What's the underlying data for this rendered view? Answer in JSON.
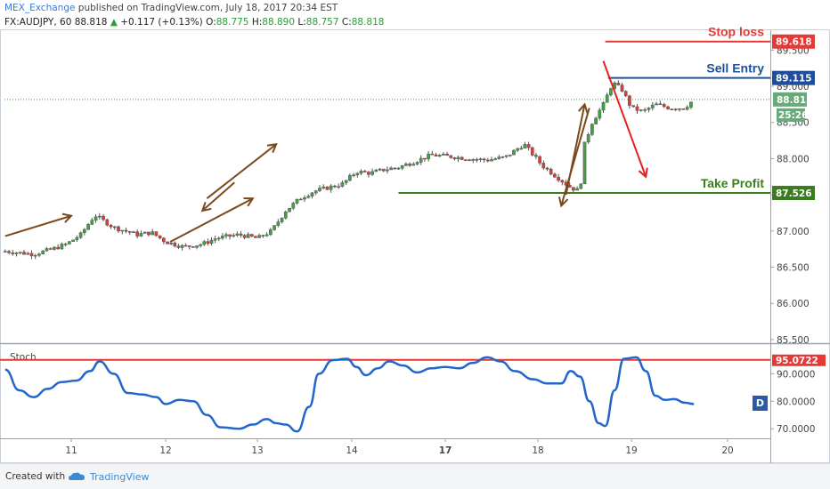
{
  "header": {
    "author": "MEX_Exchange",
    "published_text": " published on TradingView.com, July 18, 2017 20:34 EST",
    "symbol": "FX:AUDJPY, 60",
    "last": "88.818",
    "change": "+0.117 (+0.13%)",
    "open_label": "O:",
    "open": "88.775",
    "high_label": "H:",
    "high": "88.890",
    "low_label": "L:",
    "low": "88.757",
    "close_label": "C:",
    "close": "88.818"
  },
  "footer": {
    "created_with": "Created with",
    "brand": "TradingView"
  },
  "colors": {
    "up": "#43a047",
    "down": "#e53935",
    "wick": "#555555",
    "stop": "#e53935",
    "entry": "#1f4e9c",
    "tp": "#3a7d1e",
    "arrow_brown": "#7a4a1a",
    "arrow_red": "#e52020",
    "stoch": "#2266cc"
  },
  "chart_data": [
    {
      "type": "candlestick",
      "title": "FX:AUDJPY, 60",
      "x_ticks": [
        "11",
        "12",
        "13",
        "14",
        "17",
        "18",
        "19",
        "20"
      ],
      "x_range_days": [
        10.3,
        20.5
      ],
      "y_ticks": [
        "85.500",
        "86.000",
        "86.500",
        "87.000",
        "87.500",
        "88.000",
        "88.500",
        "89.000",
        "89.500"
      ],
      "ylim": [
        85.45,
        89.75
      ],
      "current_price": {
        "value": 88.818,
        "label": "88.818",
        "countdown": "25:26"
      },
      "levels": [
        {
          "name": "Stop loss",
          "value": 89.618,
          "label": "89.618"
        },
        {
          "name": "Sell Entry",
          "value": 89.115,
          "label": "89.115"
        },
        {
          "name": "Take Profit",
          "value": 87.526,
          "label": "87.526"
        }
      ],
      "close_path": [
        [
          10.3,
          86.72
        ],
        [
          10.6,
          86.68
        ],
        [
          10.8,
          86.75
        ],
        [
          10.95,
          86.82
        ],
        [
          11.1,
          86.95
        ],
        [
          11.25,
          87.22
        ],
        [
          11.45,
          87.05
        ],
        [
          11.7,
          86.95
        ],
        [
          11.85,
          86.98
        ],
        [
          12.0,
          86.85
        ],
        [
          12.2,
          86.78
        ],
        [
          12.4,
          86.82
        ],
        [
          12.55,
          86.9
        ],
        [
          12.8,
          86.95
        ],
        [
          13.0,
          86.9
        ],
        [
          13.15,
          87.0
        ],
        [
          13.3,
          87.28
        ],
        [
          13.45,
          87.45
        ],
        [
          13.6,
          87.55
        ],
        [
          13.75,
          87.6
        ],
        [
          13.9,
          87.65
        ],
        [
          14.05,
          87.82
        ],
        [
          14.2,
          87.8
        ],
        [
          14.35,
          87.85
        ],
        [
          14.5,
          87.88
        ],
        [
          14.65,
          87.95
        ],
        [
          14.85,
          88.05
        ],
        [
          15.05,
          88.03
        ],
        [
          15.25,
          88.0
        ],
        [
          15.45,
          87.98
        ],
        [
          15.65,
          88.02
        ],
        [
          15.85,
          88.2
        ],
        [
          16.05,
          87.9
        ],
        [
          16.2,
          87.75
        ],
        [
          16.35,
          87.6
        ],
        [
          16.45,
          87.55
        ],
        [
          16.5,
          88.2
        ],
        [
          16.58,
          88.5
        ],
        [
          16.7,
          88.75
        ],
        [
          16.8,
          89.05
        ],
        [
          16.9,
          88.95
        ],
        [
          17.0,
          88.7
        ],
        [
          17.12,
          88.65
        ],
        [
          17.25,
          88.75
        ],
        [
          17.4,
          88.7
        ],
        [
          17.55,
          88.7
        ],
        [
          17.65,
          88.818
        ]
      ],
      "annotations": [
        {
          "text": "Stop loss",
          "color": "#e53935"
        },
        {
          "text": "Sell Entry",
          "color": "#1f4e9c"
        },
        {
          "text": "Take Profit",
          "color": "#3a7d1e"
        }
      ]
    },
    {
      "type": "line",
      "title": "Stoch",
      "y_ticks": [
        "70.0000",
        "80.0000",
        "90.0000"
      ],
      "ylim": [
        66.5,
        100.5
      ],
      "overbought": {
        "value": 95.0722,
        "label": "95.0722"
      },
      "badge": "D",
      "series": [
        {
          "values": [
            [
              10.3,
              91.5
            ],
            [
              10.45,
              84
            ],
            [
              10.6,
              81.5
            ],
            [
              10.75,
              84.5
            ],
            [
              10.9,
              87
            ],
            [
              11.05,
              87.5
            ],
            [
              11.2,
              91
            ],
            [
              11.3,
              94.5
            ],
            [
              11.45,
              90
            ],
            [
              11.6,
              83
            ],
            [
              11.75,
              82.5
            ],
            [
              11.9,
              81.5
            ],
            [
              12.0,
              79
            ],
            [
              12.15,
              80.5
            ],
            [
              12.3,
              80
            ],
            [
              12.45,
              75
            ],
            [
              12.6,
              70.5
            ],
            [
              12.8,
              70
            ],
            [
              12.95,
              71.5
            ],
            [
              13.1,
              73.5
            ],
            [
              13.2,
              72
            ],
            [
              13.3,
              71.5
            ],
            [
              13.42,
              69
            ],
            [
              13.55,
              78
            ],
            [
              13.65,
              90
            ],
            [
              13.8,
              95
            ],
            [
              13.95,
              95.5
            ],
            [
              14.05,
              92.5
            ],
            [
              14.15,
              89.5
            ],
            [
              14.28,
              92
            ],
            [
              14.4,
              94.5
            ],
            [
              14.55,
              93
            ],
            [
              14.7,
              90.5
            ],
            [
              14.85,
              92
            ],
            [
              15.0,
              92.5
            ],
            [
              15.15,
              92
            ],
            [
              15.3,
              94
            ],
            [
              15.45,
              96
            ],
            [
              15.6,
              94.5
            ],
            [
              15.75,
              91
            ],
            [
              15.95,
              88
            ],
            [
              16.1,
              86.5
            ],
            [
              16.25,
              86.5
            ],
            [
              16.35,
              91
            ],
            [
              16.45,
              89
            ],
            [
              16.55,
              80
            ],
            [
              16.65,
              72
            ],
            [
              16.72,
              71
            ],
            [
              16.82,
              84
            ],
            [
              16.92,
              95.5
            ],
            [
              17.05,
              96
            ],
            [
              17.15,
              91
            ],
            [
              17.25,
              82
            ],
            [
              17.35,
              80.5
            ],
            [
              17.45,
              80.8
            ],
            [
              17.55,
              79.5
            ],
            [
              17.65,
              79
            ]
          ]
        }
      ]
    }
  ]
}
